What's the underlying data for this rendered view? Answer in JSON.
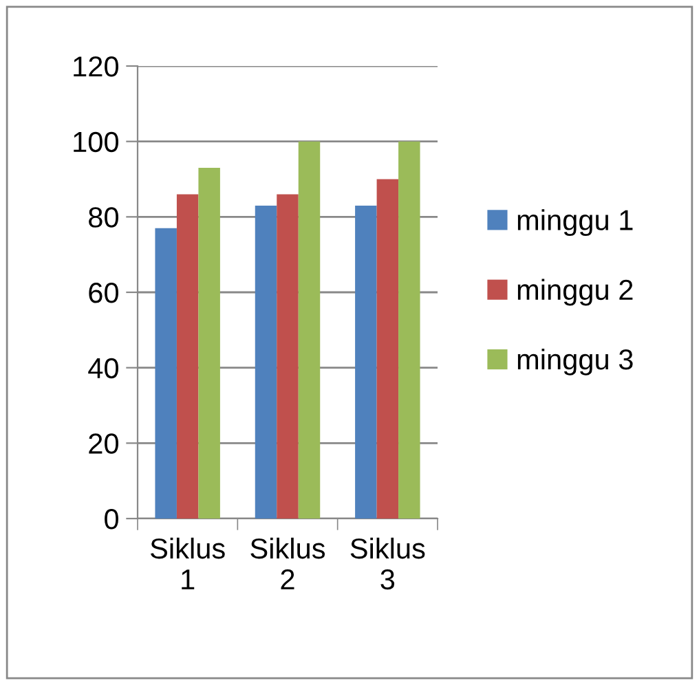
{
  "chart_data": {
    "type": "bar",
    "categories": [
      "Siklus\n1",
      "Siklus\n2",
      "Siklus\n3"
    ],
    "series": [
      {
        "name": "minggu 1",
        "color": "#4f81bd",
        "values": [
          77,
          83,
          83
        ]
      },
      {
        "name": "minggu 2",
        "color": "#c0504d",
        "values": [
          86,
          86,
          90
        ]
      },
      {
        "name": "minggu 3",
        "color": "#9bbb59",
        "values": [
          93,
          100,
          100
        ]
      }
    ],
    "ylim": [
      0,
      120
    ],
    "yticks": [
      0,
      20,
      40,
      60,
      80,
      100,
      120
    ],
    "grid": "y",
    "legend": "right"
  }
}
